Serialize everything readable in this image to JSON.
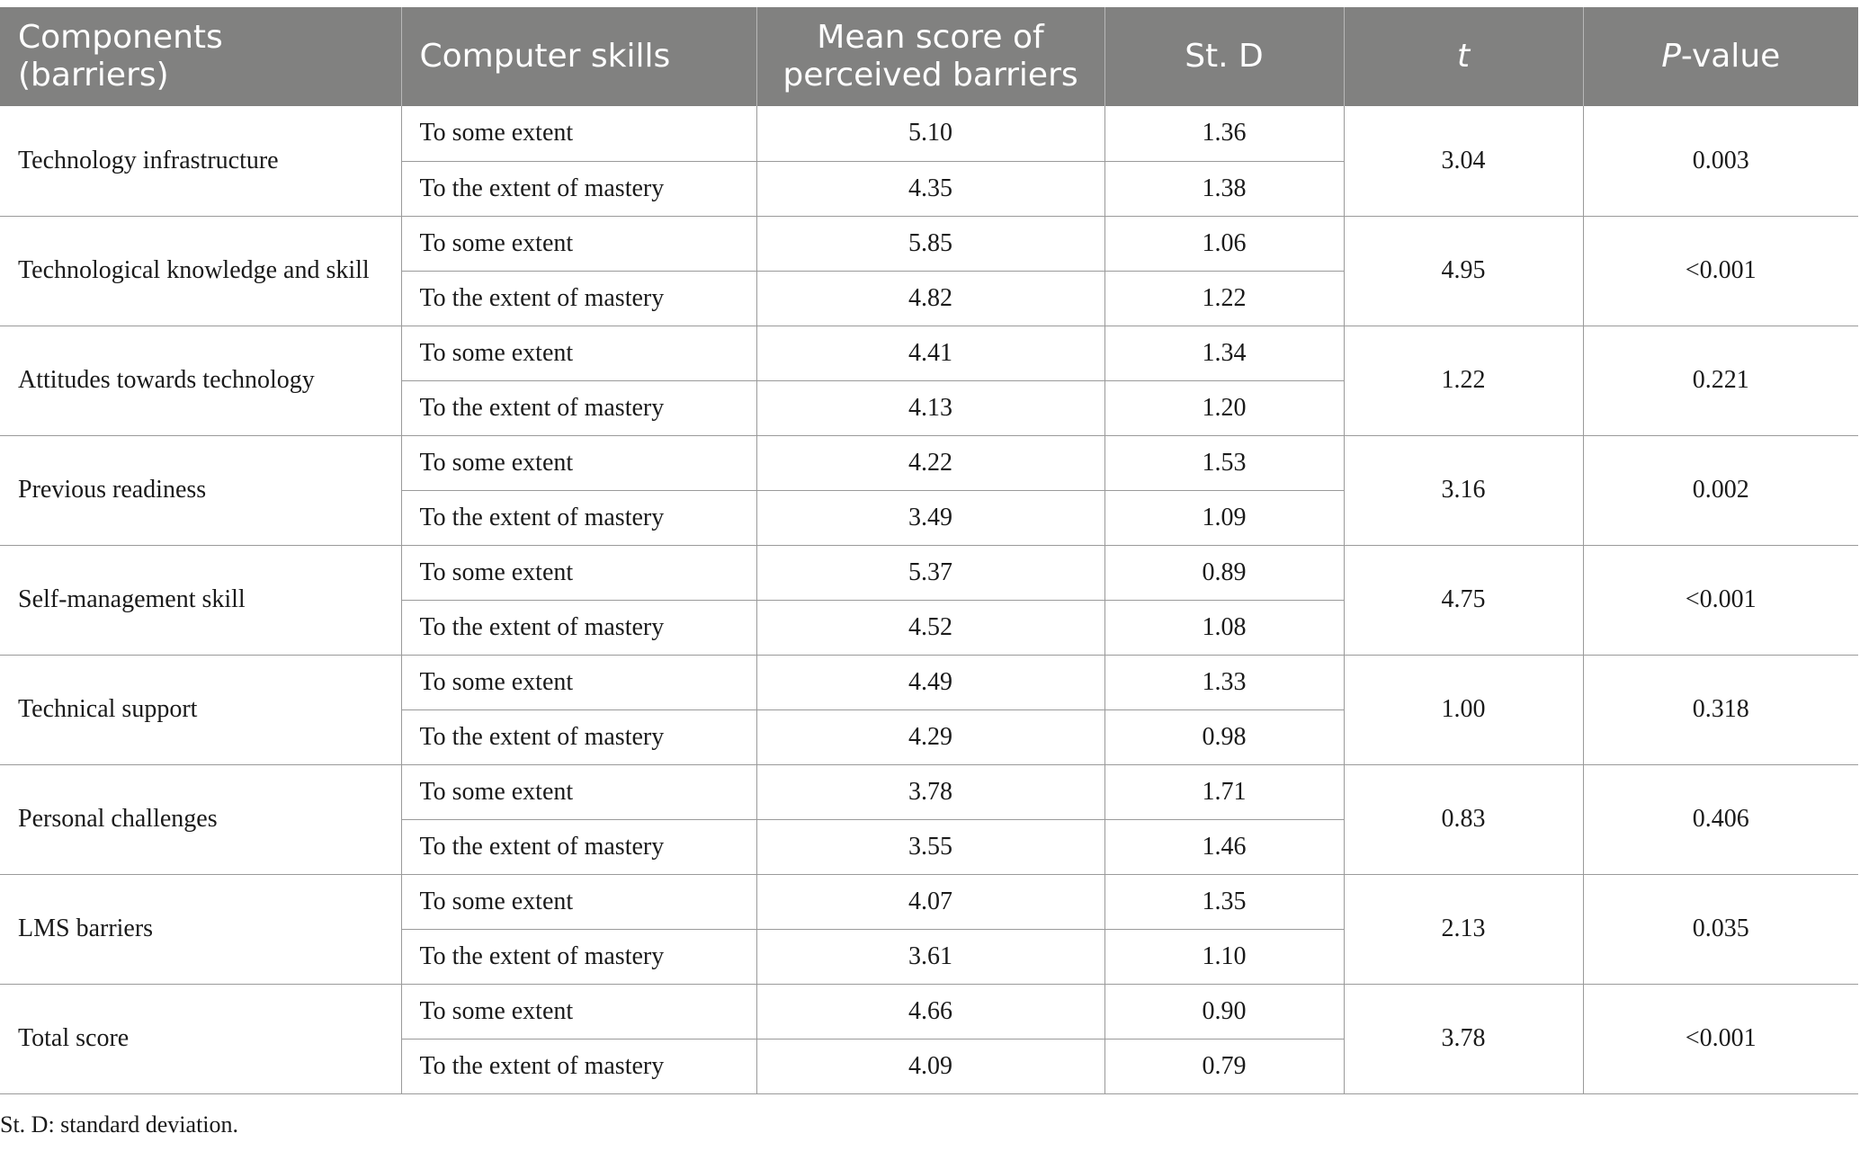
{
  "table": {
    "headers": {
      "component": "Components (barriers)",
      "skill": "Computer skills",
      "mean": "Mean score of perceived barriers",
      "sd": "St. D",
      "t": "t",
      "p_italic": "P",
      "p_rest": "-value"
    },
    "groups": [
      {
        "component": "Technology infrastructure",
        "t": "3.04",
        "p": "0.003",
        "rows": [
          {
            "skill": "To some extent",
            "mean": "5.10",
            "sd": "1.36"
          },
          {
            "skill": "To the extent of mastery",
            "mean": "4.35",
            "sd": "1.38"
          }
        ]
      },
      {
        "component": "Technological knowledge and skill",
        "t": "4.95",
        "p": "<0.001",
        "rows": [
          {
            "skill": "To some extent",
            "mean": "5.85",
            "sd": "1.06"
          },
          {
            "skill": "To the extent of mastery",
            "mean": "4.82",
            "sd": "1.22"
          }
        ]
      },
      {
        "component": "Attitudes towards technology",
        "t": "1.22",
        "p": "0.221",
        "rows": [
          {
            "skill": "To some extent",
            "mean": "4.41",
            "sd": "1.34"
          },
          {
            "skill": "To the extent of mastery",
            "mean": "4.13",
            "sd": "1.20"
          }
        ]
      },
      {
        "component": "Previous readiness",
        "t": "3.16",
        "p": "0.002",
        "rows": [
          {
            "skill": "To some extent",
            "mean": "4.22",
            "sd": "1.53"
          },
          {
            "skill": "To the extent of mastery",
            "mean": "3.49",
            "sd": "1.09"
          }
        ]
      },
      {
        "component": "Self-management skill",
        "t": "4.75",
        "p": "<0.001",
        "rows": [
          {
            "skill": "To some extent",
            "mean": "5.37",
            "sd": "0.89"
          },
          {
            "skill": "To the extent of mastery",
            "mean": "4.52",
            "sd": "1.08"
          }
        ]
      },
      {
        "component": "Technical support",
        "t": "1.00",
        "p": "0.318",
        "rows": [
          {
            "skill": "To some extent",
            "mean": "4.49",
            "sd": "1.33"
          },
          {
            "skill": "To the extent of mastery",
            "mean": "4.29",
            "sd": "0.98"
          }
        ]
      },
      {
        "component": "Personal challenges",
        "t": "0.83",
        "p": "0.406",
        "rows": [
          {
            "skill": "To some extent",
            "mean": "3.78",
            "sd": "1.71"
          },
          {
            "skill": "To the extent of mastery",
            "mean": "3.55",
            "sd": "1.46"
          }
        ]
      },
      {
        "component": "LMS barriers",
        "t": "2.13",
        "p": "0.035",
        "rows": [
          {
            "skill": "To some extent",
            "mean": "4.07",
            "sd": "1.35"
          },
          {
            "skill": "To the extent of mastery",
            "mean": "3.61",
            "sd": "1.10"
          }
        ]
      },
      {
        "component": "Total score",
        "t": "3.78",
        "p": "<0.001",
        "rows": [
          {
            "skill": "To some extent",
            "mean": "4.66",
            "sd": "0.90"
          },
          {
            "skill": "To the extent of mastery",
            "mean": "4.09",
            "sd": "0.79"
          }
        ]
      }
    ]
  },
  "footnote": "St. D: standard deviation."
}
